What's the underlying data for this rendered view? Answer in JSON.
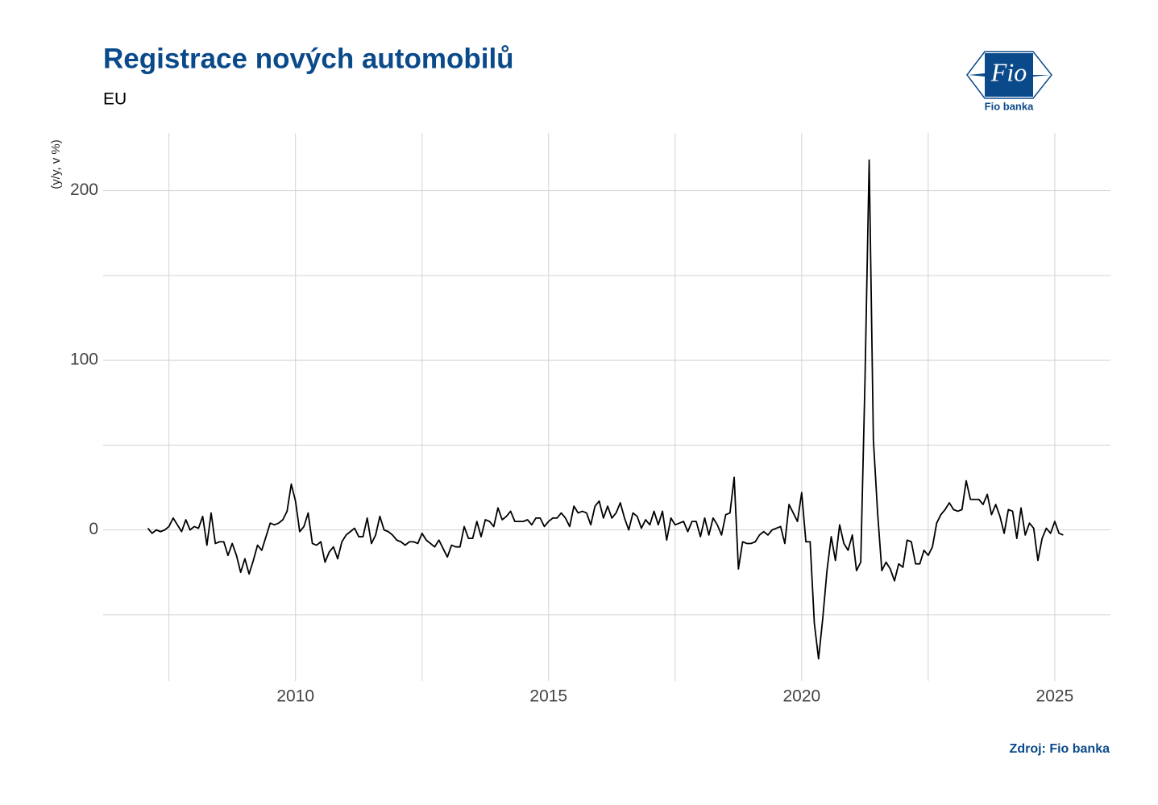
{
  "chart_data": {
    "type": "line",
    "title": "Registrace nových automobilů",
    "subtitle": "EU",
    "y_label": "(y/y, v %)",
    "source": "Zdroj: Fio banka",
    "logo": {
      "mark": "Fio",
      "name": "Fio banka"
    },
    "color": "#000000",
    "grid": true,
    "xlim": [
      2006.2,
      2026.1
    ],
    "xticks": [
      2010,
      2015,
      2020,
      2025
    ],
    "x_minor_ticks": [
      2007.5,
      2012.5,
      2017.5,
      2022.5
    ],
    "ylim": [
      -89,
      234
    ],
    "yticks": [
      0,
      100,
      200
    ],
    "y_minor_ticks": [
      -50,
      50,
      150
    ],
    "x": [
      "2007-01",
      "2007-02",
      "2007-03",
      "2007-04",
      "2007-05",
      "2007-06",
      "2007-07",
      "2007-08",
      "2007-09",
      "2007-10",
      "2007-11",
      "2007-12",
      "2008-01",
      "2008-02",
      "2008-03",
      "2008-04",
      "2008-05",
      "2008-06",
      "2008-07",
      "2008-08",
      "2008-09",
      "2008-10",
      "2008-11",
      "2008-12",
      "2009-01",
      "2009-02",
      "2009-03",
      "2009-04",
      "2009-05",
      "2009-06",
      "2009-07",
      "2009-08",
      "2009-09",
      "2009-10",
      "2009-11",
      "2009-12",
      "2010-01",
      "2010-02",
      "2010-03",
      "2010-04",
      "2010-05",
      "2010-06",
      "2010-07",
      "2010-08",
      "2010-09",
      "2010-10",
      "2010-11",
      "2010-12",
      "2011-01",
      "2011-02",
      "2011-03",
      "2011-04",
      "2011-05",
      "2011-06",
      "2011-07",
      "2011-08",
      "2011-09",
      "2011-10",
      "2011-11",
      "2011-12",
      "2012-01",
      "2012-02",
      "2012-03",
      "2012-04",
      "2012-05",
      "2012-06",
      "2012-07",
      "2012-08",
      "2012-09",
      "2012-10",
      "2012-11",
      "2012-12",
      "2013-01",
      "2013-02",
      "2013-03",
      "2013-04",
      "2013-05",
      "2013-06",
      "2013-07",
      "2013-08",
      "2013-09",
      "2013-10",
      "2013-11",
      "2013-12",
      "2014-01",
      "2014-02",
      "2014-03",
      "2014-04",
      "2014-05",
      "2014-06",
      "2014-07",
      "2014-08",
      "2014-09",
      "2014-10",
      "2014-11",
      "2014-12",
      "2015-01",
      "2015-02",
      "2015-03",
      "2015-04",
      "2015-05",
      "2015-06",
      "2015-07",
      "2015-08",
      "2015-09",
      "2015-10",
      "2015-11",
      "2015-12",
      "2016-01",
      "2016-02",
      "2016-03",
      "2016-04",
      "2016-05",
      "2016-06",
      "2016-07",
      "2016-08",
      "2016-09",
      "2016-10",
      "2016-11",
      "2016-12",
      "2017-01",
      "2017-02",
      "2017-03",
      "2017-04",
      "2017-05",
      "2017-06",
      "2017-07",
      "2017-08",
      "2017-09",
      "2017-10",
      "2017-11",
      "2017-12",
      "2018-01",
      "2018-02",
      "2018-03",
      "2018-04",
      "2018-05",
      "2018-06",
      "2018-07",
      "2018-08",
      "2018-09",
      "2018-10",
      "2018-11",
      "2018-12",
      "2019-01",
      "2019-02",
      "2019-03",
      "2019-04",
      "2019-05",
      "2019-06",
      "2019-07",
      "2019-08",
      "2019-09",
      "2019-10",
      "2019-11",
      "2019-12",
      "2020-01",
      "2020-02",
      "2020-03",
      "2020-04",
      "2020-05",
      "2020-06",
      "2020-07",
      "2020-08",
      "2020-09",
      "2020-10",
      "2020-11",
      "2020-12",
      "2021-01",
      "2021-02",
      "2021-03",
      "2021-04",
      "2021-05",
      "2021-06",
      "2021-07",
      "2021-08",
      "2021-09",
      "2021-10",
      "2021-11",
      "2021-12",
      "2022-01",
      "2022-02",
      "2022-03",
      "2022-04",
      "2022-05",
      "2022-06",
      "2022-07",
      "2022-08",
      "2022-09",
      "2022-10",
      "2022-11",
      "2022-12",
      "2023-01",
      "2023-02",
      "2023-03",
      "2023-04",
      "2023-05",
      "2023-06",
      "2023-07",
      "2023-08",
      "2023-09",
      "2023-10",
      "2023-11",
      "2023-12",
      "2024-01",
      "2024-02",
      "2024-03",
      "2024-04",
      "2024-05",
      "2024-06",
      "2024-07",
      "2024-08",
      "2024-09",
      "2024-10",
      "2024-11",
      "2024-12",
      "2025-01",
      "2025-02"
    ],
    "values": [
      1,
      -2,
      0,
      -1,
      0,
      2,
      7,
      3,
      -1,
      6,
      0,
      2,
      1,
      8,
      -9,
      10,
      -8,
      -7,
      -7,
      -15,
      -8,
      -15,
      -25,
      -17,
      -26,
      -18,
      -9,
      -12,
      -4,
      4,
      3,
      4,
      6,
      11,
      27,
      17,
      -1,
      2,
      10,
      -8,
      -9,
      -7,
      -19,
      -13,
      -10,
      -17,
      -7,
      -3,
      -1,
      1,
      -4,
      -4,
      7,
      -8,
      -3,
      8,
      0,
      -1,
      -3,
      -6,
      -7,
      -9,
      -7,
      -7,
      -8,
      -2,
      -6,
      -8,
      -10,
      -6,
      -11,
      -16,
      -9,
      -10,
      -10,
      2,
      -5,
      -5,
      5,
      -4,
      6,
      5,
      2,
      13,
      6,
      8,
      11,
      5,
      5,
      5,
      6,
      3,
      7,
      7,
      2,
      5,
      7,
      7,
      10,
      7,
      2,
      14,
      10,
      11,
      10,
      3,
      14,
      17,
      7,
      14,
      7,
      10,
      16,
      7,
      0,
      10,
      8,
      1,
      6,
      3,
      11,
      3,
      11,
      -6,
      7,
      3,
      4,
      5,
      -1,
      5,
      5,
      -4,
      7,
      -3,
      7,
      3,
      -3,
      9,
      10,
      31,
      -23,
      -7,
      -8,
      -8,
      -7,
      -3,
      -1,
      -3,
      0,
      1,
      2,
      -8,
      15,
      10,
      5,
      22,
      -7,
      -7,
      -55,
      -76,
      -52,
      -24,
      -4,
      -18,
      3,
      -8,
      -12,
      -3,
      -24,
      -19,
      87,
      218,
      53,
      10,
      -24,
      -19,
      -23,
      -30,
      -20,
      -22,
      -6,
      -7,
      -20,
      -20,
      -12,
      -15,
      -10,
      4,
      9,
      12,
      16,
      12,
      11,
      12,
      29,
      18,
      18,
      18,
      15,
      21,
      9,
      15,
      8,
      -2,
      12,
      11,
      -5,
      13,
      -3,
      4,
      1,
      -18,
      -5,
      1,
      -2,
      5,
      -2,
      -3
    ]
  }
}
